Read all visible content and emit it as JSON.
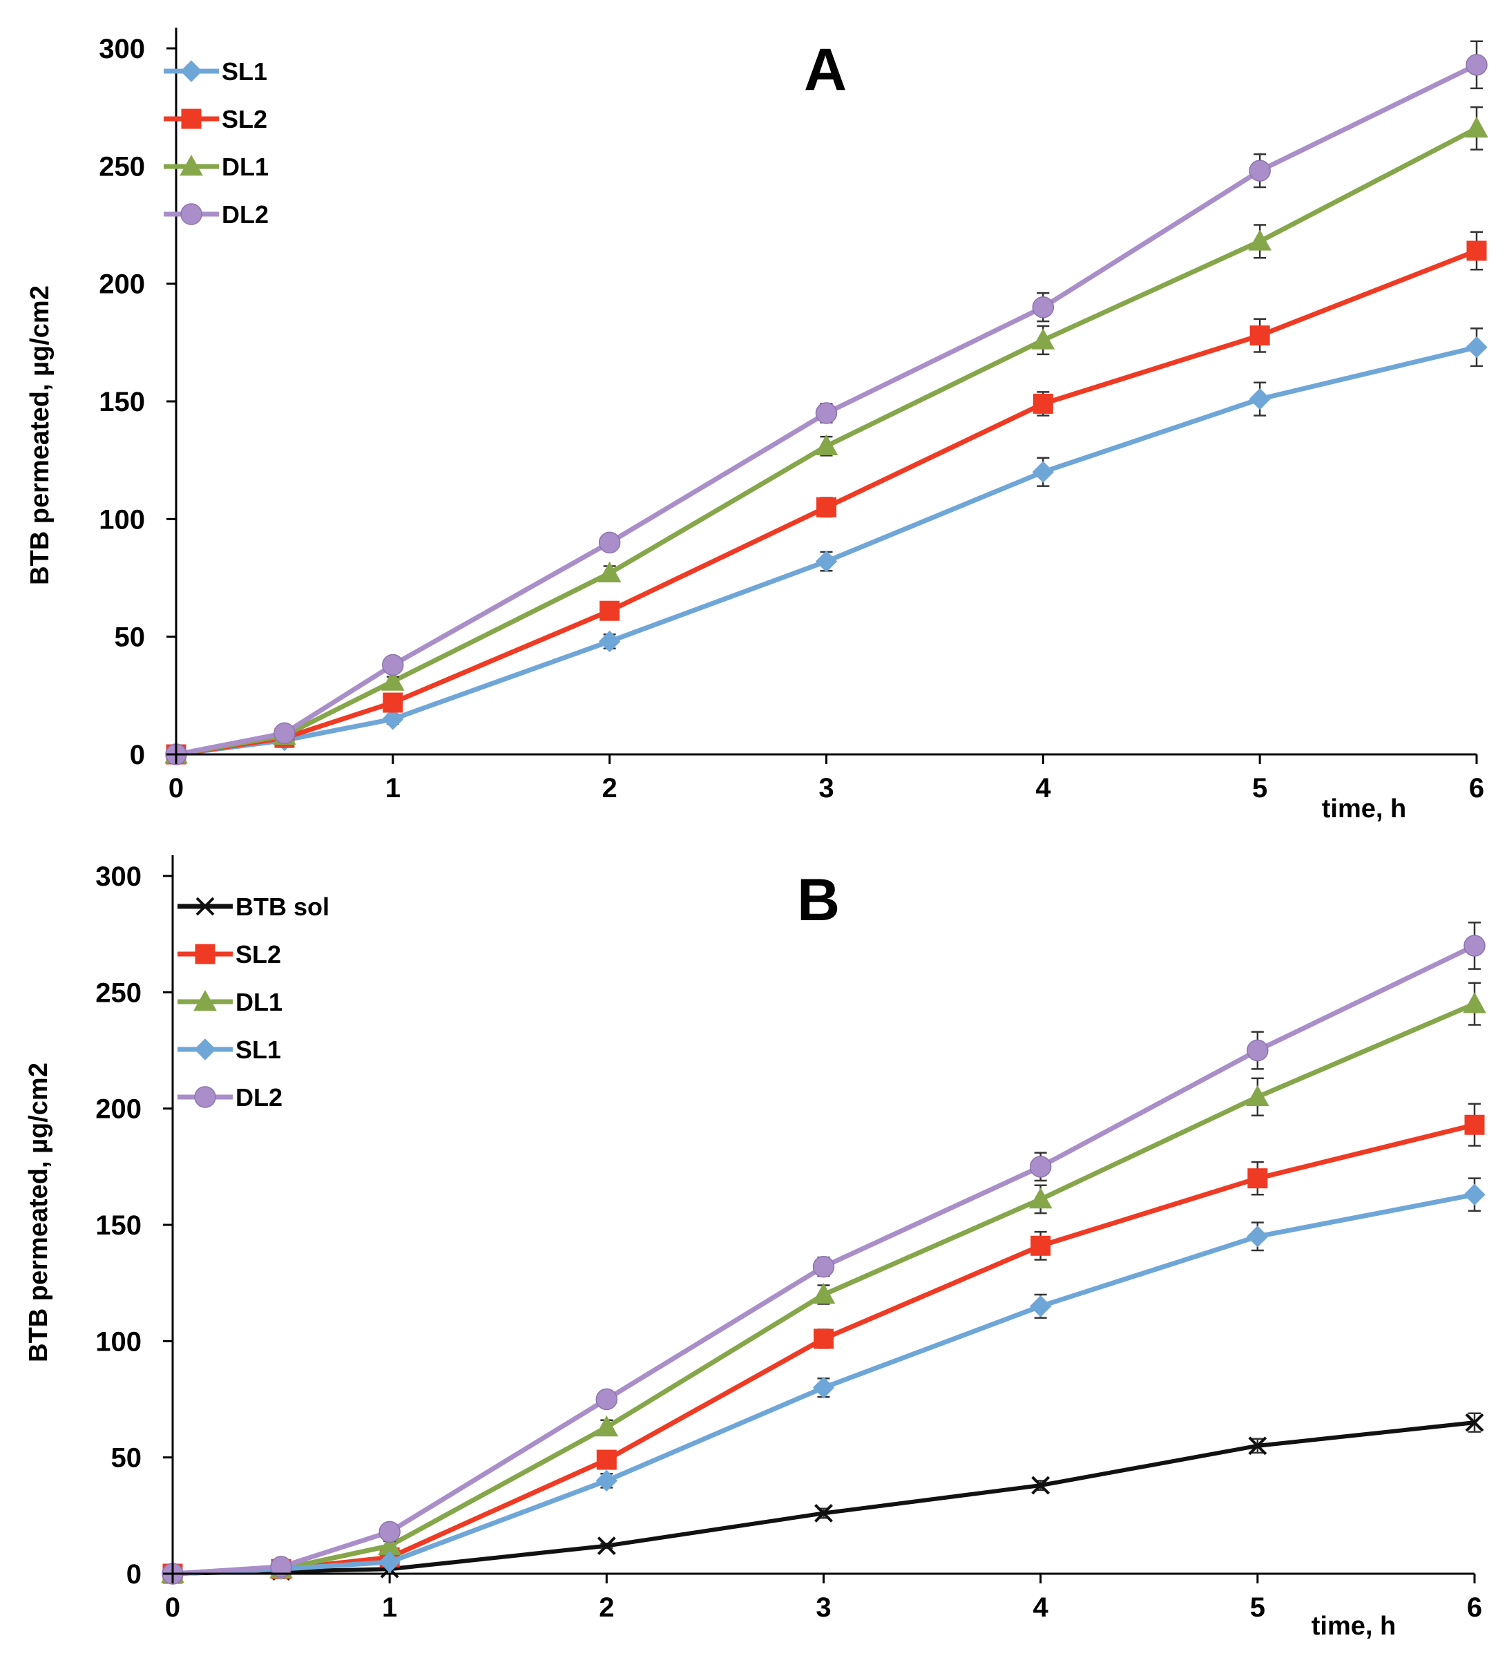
{
  "colors": {
    "SL1": "#6fa6d8",
    "SL2": "#ef3a24",
    "DL1": "#86a64a",
    "DL2": "#a98ec9",
    "BTB sol": "#111111",
    "axis": "#000000",
    "errorbar": "#333333"
  },
  "chart_data": [
    {
      "type": "line",
      "panel": "A",
      "title": "A",
      "xlabel": "time, h",
      "ylabel": "BTB permeated, µg/cm2",
      "xlim": [
        0,
        6
      ],
      "ylim": [
        0,
        300
      ],
      "xticks": [
        0,
        1,
        2,
        3,
        4,
        5,
        6
      ],
      "xtick_labels": [
        "0",
        "1",
        "2",
        "3",
        "4",
        "5",
        "6"
      ],
      "yticks": [
        0,
        50,
        100,
        150,
        200,
        250,
        300
      ],
      "ytick_labels": [
        "0",
        "50",
        "100",
        "150",
        "200",
        "250",
        "300"
      ],
      "grid": false,
      "legend_position": "top-left",
      "x": [
        0,
        0.5,
        1,
        2,
        3,
        4,
        5,
        6
      ],
      "series": [
        {
          "name": "SL1",
          "marker": "diamond",
          "values": [
            0,
            6,
            15,
            48,
            82,
            120,
            151,
            173
          ],
          "errors": [
            0,
            1,
            2,
            3,
            4,
            6,
            7,
            8
          ]
        },
        {
          "name": "SL2",
          "marker": "square",
          "values": [
            0,
            7,
            22,
            61,
            105,
            149,
            178,
            214
          ],
          "errors": [
            0,
            1,
            2,
            3,
            4,
            5,
            7,
            8
          ]
        },
        {
          "name": "DL1",
          "marker": "triangle",
          "values": [
            0,
            8,
            31,
            77,
            131,
            176,
            218,
            266
          ],
          "errors": [
            0,
            1,
            2,
            3,
            4,
            6,
            7,
            9
          ]
        },
        {
          "name": "DL2",
          "marker": "circle",
          "values": [
            0,
            9,
            38,
            90,
            145,
            190,
            248,
            293
          ],
          "errors": [
            0,
            1,
            2,
            3,
            4,
            6,
            7,
            10
          ]
        }
      ]
    },
    {
      "type": "line",
      "panel": "B",
      "title": "B",
      "xlabel": "time, h",
      "ylabel": "BTB permeated, µg/cm2",
      "xlim": [
        0,
        6
      ],
      "ylim": [
        0,
        300
      ],
      "xticks": [
        0,
        1,
        2,
        3,
        4,
        5,
        6
      ],
      "xtick_labels": [
        "0",
        "1",
        "2",
        "3",
        "4",
        "5",
        "6"
      ],
      "yticks": [
        0,
        50,
        100,
        150,
        200,
        250,
        300
      ],
      "ytick_labels": [
        "0",
        "50",
        "100",
        "150",
        "200",
        "250",
        "300"
      ],
      "grid": false,
      "legend_position": "top-left",
      "x": [
        0,
        0.5,
        1,
        2,
        3,
        4,
        5,
        6
      ],
      "series": [
        {
          "name": "BTB sol",
          "marker": "x",
          "values": [
            0,
            1,
            2,
            12,
            26,
            38,
            55,
            65
          ],
          "errors": [
            0,
            0,
            0,
            1,
            2,
            2,
            3,
            4
          ]
        },
        {
          "name": "SL2",
          "marker": "square",
          "values": [
            0,
            2,
            7,
            49,
            101,
            141,
            170,
            193
          ],
          "errors": [
            0,
            1,
            1,
            3,
            4,
            6,
            7,
            9
          ]
        },
        {
          "name": "DL1",
          "marker": "triangle",
          "values": [
            0,
            2,
            12,
            63,
            120,
            161,
            205,
            245
          ],
          "errors": [
            0,
            1,
            2,
            3,
            4,
            6,
            8,
            9
          ]
        },
        {
          "name": "SL1",
          "marker": "diamond",
          "values": [
            0,
            2,
            5,
            40,
            80,
            115,
            145,
            163
          ],
          "errors": [
            0,
            1,
            1,
            3,
            4,
            5,
            6,
            7
          ]
        },
        {
          "name": "DL2",
          "marker": "circle",
          "values": [
            0,
            3,
            18,
            75,
            132,
            175,
            225,
            270
          ],
          "errors": [
            0,
            1,
            2,
            3,
            4,
            6,
            8,
            10
          ]
        }
      ]
    }
  ]
}
